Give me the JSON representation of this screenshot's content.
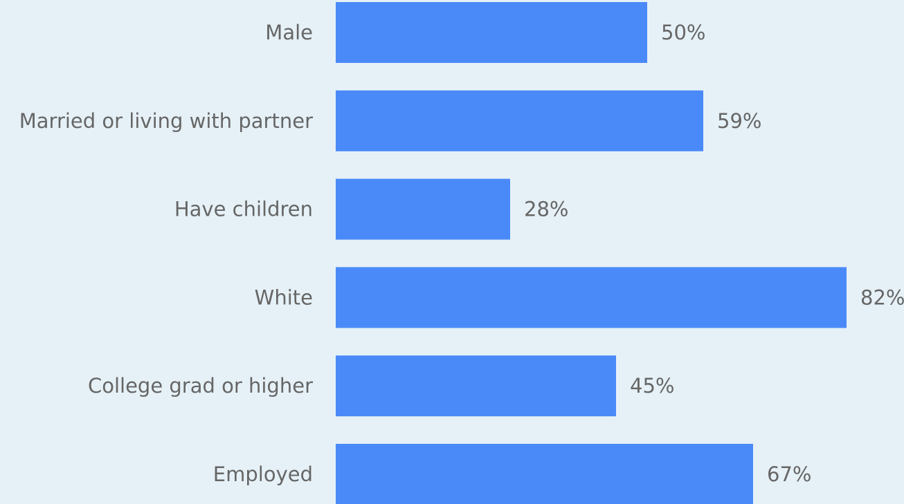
{
  "chart_data": {
    "type": "bar",
    "orientation": "horizontal",
    "categories": [
      "Male",
      "Married or living with partner",
      "Have children",
      "White",
      "College grad or higher",
      "Employed"
    ],
    "values": [
      50,
      59,
      28,
      82,
      45,
      67
    ],
    "value_labels": [
      "50%",
      "59%",
      "28%",
      "82%",
      "45%",
      "67%"
    ],
    "color": "#4a8af8",
    "xlim": [
      0,
      100
    ]
  }
}
